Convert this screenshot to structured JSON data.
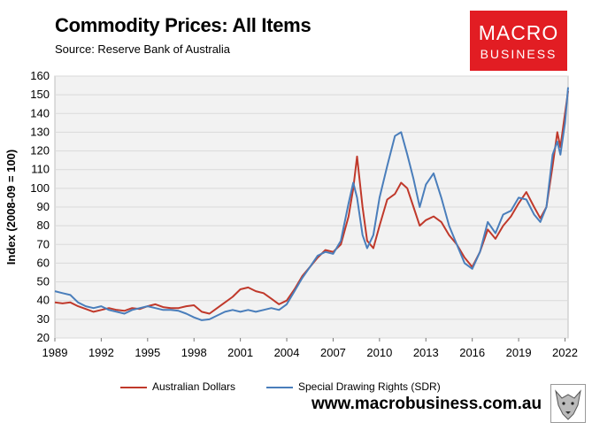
{
  "header": {
    "title": "Commodity Prices: All Items",
    "source": "Source: Reserve Bank of Australia"
  },
  "logo": {
    "line1": "MACRO",
    "line2": "BUSINESS"
  },
  "footer": {
    "website": "www.macrobusiness.com.au"
  },
  "colors": {
    "aud": "#c0392b",
    "sdr": "#4a7ebb",
    "grid": "#d9d9d9",
    "plot_bg": "#f2f2f2"
  },
  "chart_data": {
    "type": "line",
    "title": "Commodity Prices: All Items",
    "xlabel": "",
    "ylabel": "Index (2008-09 = 100)",
    "xlim": [
      1989,
      2022.2
    ],
    "ylim": [
      20,
      160
    ],
    "yticks": [
      20,
      30,
      40,
      50,
      60,
      70,
      80,
      90,
      100,
      110,
      120,
      130,
      140,
      150,
      160
    ],
    "xticks": [
      1989,
      1992,
      1995,
      1998,
      2001,
      2004,
      2007,
      2010,
      2013,
      2016,
      2019,
      2022
    ],
    "grid": true,
    "legend_position": "bottom",
    "series": [
      {
        "name": "Australian Dollars",
        "color": "#c0392b",
        "points": [
          [
            1989.0,
            39
          ],
          [
            1989.5,
            38.5
          ],
          [
            1990.0,
            39
          ],
          [
            1990.5,
            37
          ],
          [
            1991.0,
            35.5
          ],
          [
            1991.5,
            34
          ],
          [
            1992.0,
            35
          ],
          [
            1992.5,
            36
          ],
          [
            1993.0,
            35
          ],
          [
            1993.5,
            34.5
          ],
          [
            1994.0,
            36
          ],
          [
            1994.5,
            35.5
          ],
          [
            1995.0,
            37
          ],
          [
            1995.5,
            38
          ],
          [
            1996.0,
            36.5
          ],
          [
            1996.5,
            36
          ],
          [
            1997.0,
            36
          ],
          [
            1997.5,
            37
          ],
          [
            1998.0,
            37.5
          ],
          [
            1998.5,
            34
          ],
          [
            1999.0,
            33
          ],
          [
            1999.5,
            36
          ],
          [
            2000.0,
            39
          ],
          [
            2000.5,
            42
          ],
          [
            2001.0,
            46
          ],
          [
            2001.5,
            47
          ],
          [
            2002.0,
            45
          ],
          [
            2002.5,
            44
          ],
          [
            2003.0,
            41
          ],
          [
            2003.5,
            38
          ],
          [
            2004.0,
            40
          ],
          [
            2004.5,
            46
          ],
          [
            2005.0,
            53
          ],
          [
            2005.5,
            58
          ],
          [
            2006.0,
            63
          ],
          [
            2006.5,
            67
          ],
          [
            2007.0,
            66
          ],
          [
            2007.5,
            70
          ],
          [
            2008.0,
            85
          ],
          [
            2008.3,
            100
          ],
          [
            2008.55,
            117
          ],
          [
            2008.9,
            90
          ],
          [
            2009.2,
            72
          ],
          [
            2009.6,
            68
          ],
          [
            2010.0,
            80
          ],
          [
            2010.5,
            94
          ],
          [
            2011.0,
            97
          ],
          [
            2011.4,
            103
          ],
          [
            2011.8,
            100
          ],
          [
            2012.2,
            90
          ],
          [
            2012.6,
            80
          ],
          [
            2013.0,
            83
          ],
          [
            2013.5,
            85
          ],
          [
            2014.0,
            82
          ],
          [
            2014.5,
            75
          ],
          [
            2015.0,
            70
          ],
          [
            2015.5,
            63
          ],
          [
            2016.0,
            58
          ],
          [
            2016.5,
            66
          ],
          [
            2017.0,
            78
          ],
          [
            2017.5,
            73
          ],
          [
            2018.0,
            80
          ],
          [
            2018.5,
            85
          ],
          [
            2019.0,
            92
          ],
          [
            2019.5,
            98
          ],
          [
            2020.0,
            90
          ],
          [
            2020.4,
            84
          ],
          [
            2020.8,
            90
          ],
          [
            2021.2,
            112
          ],
          [
            2021.5,
            130
          ],
          [
            2021.7,
            122
          ],
          [
            2022.0,
            140
          ],
          [
            2022.2,
            152
          ]
        ]
      },
      {
        "name": "Special Drawing Rights (SDR)",
        "color": "#4a7ebb",
        "points": [
          [
            1989.0,
            45
          ],
          [
            1989.5,
            44
          ],
          [
            1990.0,
            43
          ],
          [
            1990.5,
            39
          ],
          [
            1991.0,
            37
          ],
          [
            1991.5,
            36
          ],
          [
            1992.0,
            37
          ],
          [
            1992.5,
            35
          ],
          [
            1993.0,
            34
          ],
          [
            1993.5,
            33
          ],
          [
            1994.0,
            35
          ],
          [
            1994.5,
            36
          ],
          [
            1995.0,
            37
          ],
          [
            1995.5,
            36
          ],
          [
            1996.0,
            35
          ],
          [
            1996.5,
            35
          ],
          [
            1997.0,
            34.5
          ],
          [
            1997.5,
            33
          ],
          [
            1998.0,
            31
          ],
          [
            1998.5,
            29.5
          ],
          [
            1999.0,
            30
          ],
          [
            1999.5,
            32
          ],
          [
            2000.0,
            34
          ],
          [
            2000.5,
            35
          ],
          [
            2001.0,
            34
          ],
          [
            2001.5,
            35
          ],
          [
            2002.0,
            34
          ],
          [
            2002.5,
            35
          ],
          [
            2003.0,
            36
          ],
          [
            2003.5,
            35
          ],
          [
            2004.0,
            38
          ],
          [
            2004.5,
            45
          ],
          [
            2005.0,
            52
          ],
          [
            2005.5,
            58
          ],
          [
            2006.0,
            64
          ],
          [
            2006.5,
            66
          ],
          [
            2007.0,
            65
          ],
          [
            2007.5,
            72
          ],
          [
            2008.0,
            92
          ],
          [
            2008.3,
            103
          ],
          [
            2008.55,
            95
          ],
          [
            2008.9,
            75
          ],
          [
            2009.2,
            68
          ],
          [
            2009.6,
            75
          ],
          [
            2010.0,
            95
          ],
          [
            2010.5,
            112
          ],
          [
            2011.0,
            128
          ],
          [
            2011.4,
            130
          ],
          [
            2011.8,
            118
          ],
          [
            2012.2,
            105
          ],
          [
            2012.6,
            90
          ],
          [
            2013.0,
            102
          ],
          [
            2013.5,
            108
          ],
          [
            2014.0,
            95
          ],
          [
            2014.5,
            80
          ],
          [
            2015.0,
            70
          ],
          [
            2015.5,
            60
          ],
          [
            2016.0,
            57
          ],
          [
            2016.5,
            66
          ],
          [
            2017.0,
            82
          ],
          [
            2017.5,
            76
          ],
          [
            2018.0,
            86
          ],
          [
            2018.5,
            88
          ],
          [
            2019.0,
            95
          ],
          [
            2019.5,
            94
          ],
          [
            2020.0,
            86
          ],
          [
            2020.4,
            82
          ],
          [
            2020.8,
            90
          ],
          [
            2021.2,
            118
          ],
          [
            2021.5,
            125
          ],
          [
            2021.7,
            118
          ],
          [
            2022.0,
            135
          ],
          [
            2022.2,
            154
          ]
        ]
      }
    ]
  }
}
